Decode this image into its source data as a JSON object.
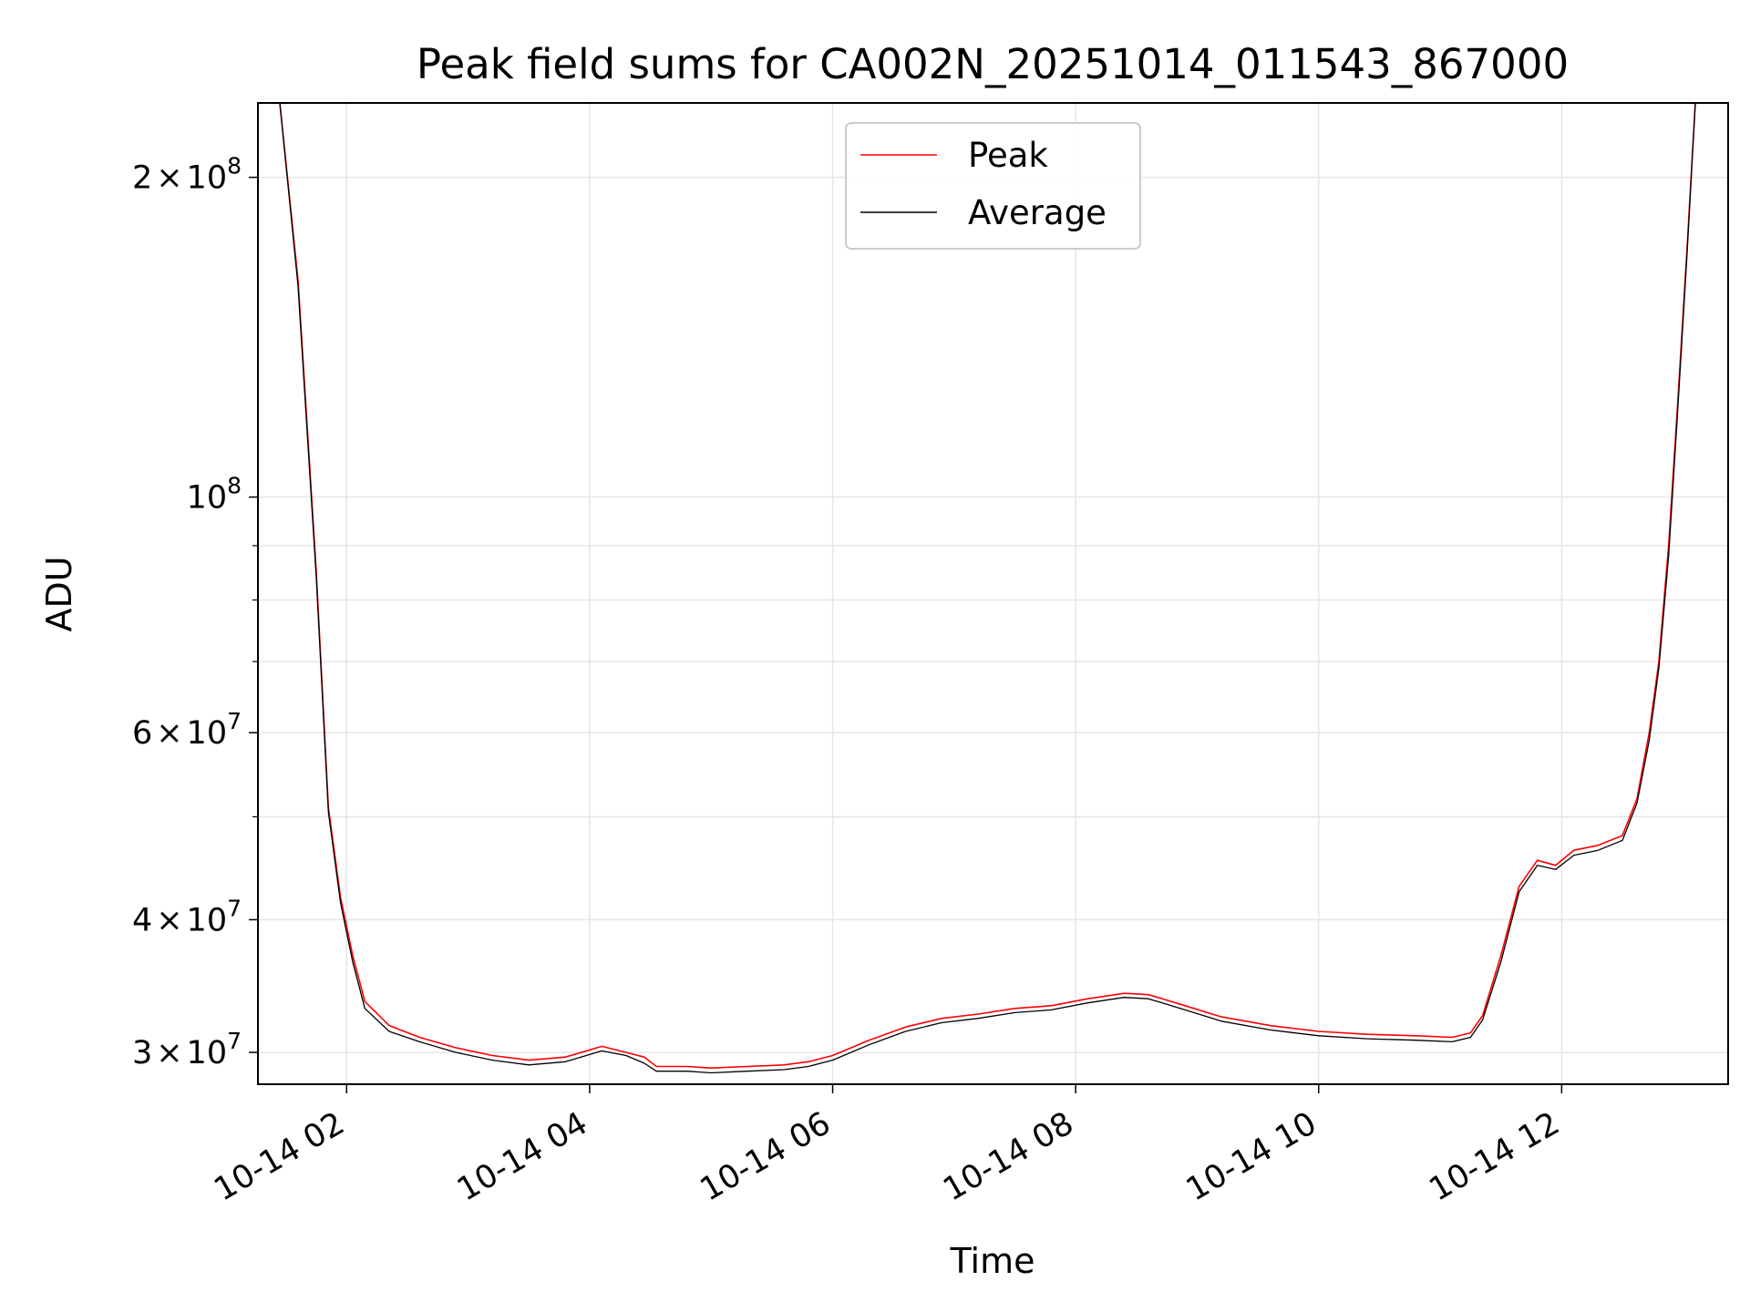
{
  "chart_data": {
    "type": "line",
    "title": "Peak field sums for CA002N_20251014_011543_867000",
    "xlabel": "Time",
    "ylabel": "ADU",
    "yscale": "log",
    "xlim_hours": [
      1.27,
      13.37
    ],
    "ylim": [
      28000000,
      235000000
    ],
    "x_ticks": [
      {
        "value": 2,
        "label": "10-14 02"
      },
      {
        "value": 4,
        "label": "10-14 04"
      },
      {
        "value": 6,
        "label": "10-14 06"
      },
      {
        "value": 8,
        "label": "10-14 08"
      },
      {
        "value": 10,
        "label": "10-14 10"
      },
      {
        "value": 12,
        "label": "10-14 12"
      }
    ],
    "y_major_ticks": [
      {
        "value": 30000000,
        "mantissa": "3",
        "base": "10",
        "exp": "7"
      },
      {
        "value": 40000000,
        "mantissa": "4",
        "base": "10",
        "exp": "7"
      },
      {
        "value": 60000000,
        "mantissa": "6",
        "base": "10",
        "exp": "7"
      },
      {
        "value": 100000000,
        "mantissa": "",
        "base": "10",
        "exp": "8"
      },
      {
        "value": 200000000,
        "mantissa": "2",
        "base": "10",
        "exp": "8"
      }
    ],
    "y_minor_ticks": [
      50000000,
      70000000,
      80000000,
      90000000
    ],
    "grid": true,
    "legend_position": "top-center",
    "series": [
      {
        "name": "Peak",
        "color": "#ff0000",
        "x": [
          1.45,
          1.6,
          1.75,
          1.85,
          1.95,
          2.05,
          2.15,
          2.35,
          2.6,
          2.9,
          3.2,
          3.5,
          3.8,
          4.1,
          4.3,
          4.45,
          4.55,
          4.8,
          5.0,
          5.3,
          5.6,
          5.8,
          6.0,
          6.3,
          6.6,
          6.9,
          7.2,
          7.5,
          7.8,
          8.1,
          8.4,
          8.6,
          8.9,
          9.2,
          9.6,
          10.0,
          10.4,
          10.8,
          11.1,
          11.25,
          11.35,
          11.5,
          11.65,
          11.8,
          11.95,
          12.1,
          12.3,
          12.5,
          12.62,
          12.72,
          12.8,
          12.88,
          12.95,
          13.03,
          13.1
        ],
        "values": [
          235000000,
          160000000,
          85000000,
          51000000,
          42000000,
          37000000,
          33500000,
          31800000,
          31000000,
          30300000,
          29800000,
          29500000,
          29700000,
          30400000,
          30000000,
          29700000,
          29100000,
          29100000,
          29000000,
          29100000,
          29200000,
          29400000,
          29800000,
          30800000,
          31700000,
          32300000,
          32600000,
          33000000,
          33200000,
          33700000,
          34100000,
          34000000,
          33200000,
          32400000,
          31800000,
          31400000,
          31200000,
          31100000,
          31000000,
          31300000,
          32500000,
          37000000,
          43000000,
          45500000,
          45000000,
          46500000,
          47000000,
          48000000,
          52000000,
          60000000,
          70000000,
          90000000,
          120000000,
          170000000,
          235000000
        ]
      },
      {
        "name": "Average",
        "color": "#000000",
        "x": [
          1.45,
          1.6,
          1.75,
          1.85,
          1.95,
          2.05,
          2.15,
          2.35,
          2.6,
          2.9,
          3.2,
          3.5,
          3.8,
          4.1,
          4.3,
          4.45,
          4.55,
          4.8,
          5.0,
          5.3,
          5.6,
          5.8,
          6.0,
          6.3,
          6.6,
          6.9,
          7.2,
          7.5,
          7.8,
          8.1,
          8.4,
          8.6,
          8.9,
          9.2,
          9.6,
          10.0,
          10.4,
          10.8,
          11.1,
          11.25,
          11.35,
          11.5,
          11.65,
          11.8,
          11.95,
          12.1,
          12.3,
          12.5,
          12.62,
          12.72,
          12.8,
          12.88,
          12.95,
          13.03,
          13.1
        ],
        "values": [
          235000000,
          158000000,
          84000000,
          50500000,
          41500000,
          36500000,
          33000000,
          31400000,
          30700000,
          30000000,
          29500000,
          29200000,
          29400000,
          30100000,
          29800000,
          29300000,
          28800000,
          28800000,
          28700000,
          28800000,
          28900000,
          29100000,
          29500000,
          30500000,
          31400000,
          32000000,
          32300000,
          32700000,
          32900000,
          33400000,
          33800000,
          33700000,
          32900000,
          32100000,
          31500000,
          31100000,
          30900000,
          30800000,
          30700000,
          31000000,
          32200000,
          36500000,
          42500000,
          45000000,
          44600000,
          46000000,
          46500000,
          47500000,
          51500000,
          59000000,
          69000000,
          88000000,
          118000000,
          168000000,
          235000000
        ]
      }
    ],
    "legend": [
      {
        "label": "Peak",
        "color": "#ff0000"
      },
      {
        "label": "Average",
        "color": "#000000"
      }
    ]
  }
}
